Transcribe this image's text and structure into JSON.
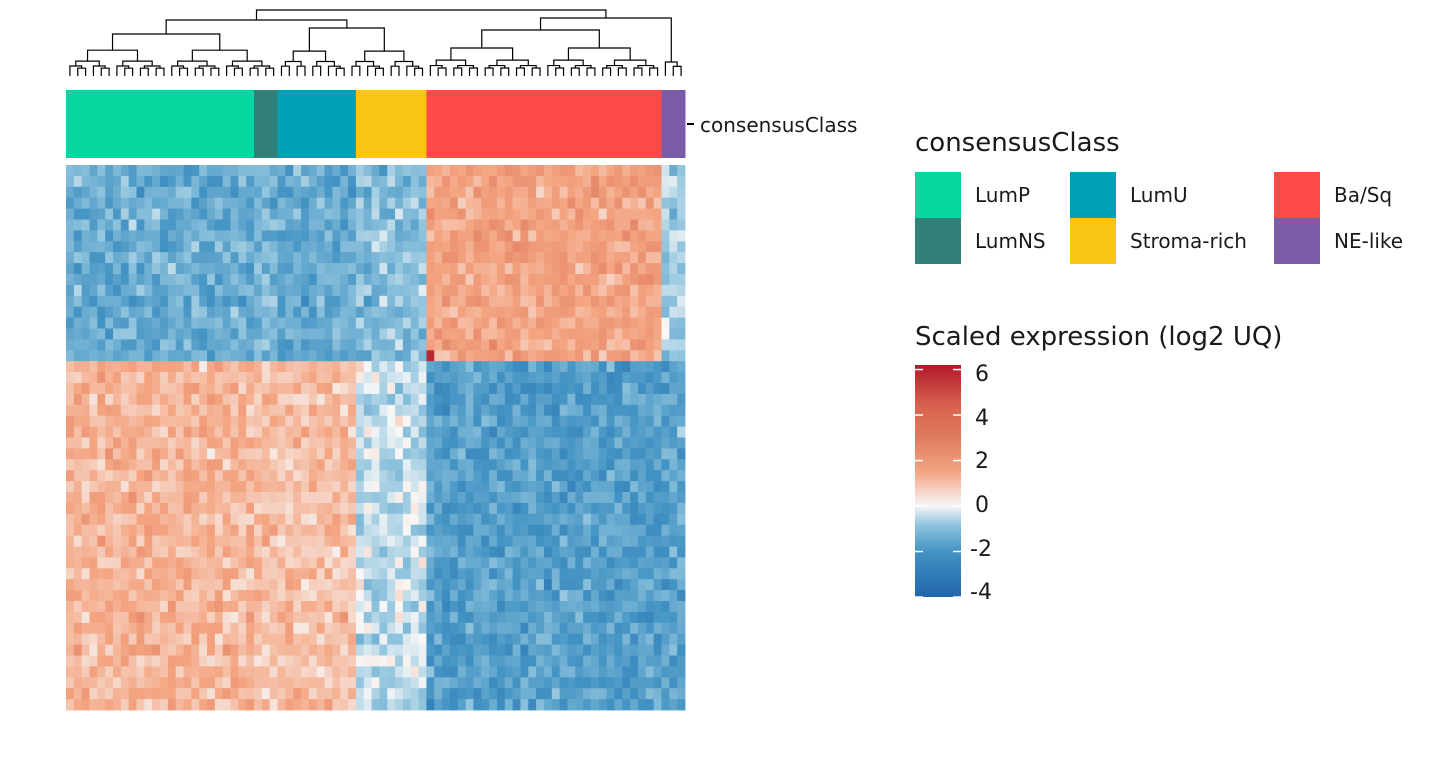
{
  "chart_data": {
    "type": "heatmap",
    "title": "",
    "annotation_track_label": "consensusClass",
    "class_legend": {
      "title": "consensusClass",
      "entries": [
        {
          "label": "LumP",
          "color": "#06D6A0"
        },
        {
          "label": "LumU",
          "color": "#00A0B8"
        },
        {
          "label": "Ba/Sq",
          "color": "#FF4A4A"
        },
        {
          "label": "LumNS",
          "color": "#338079"
        },
        {
          "label": "Stroma-rich",
          "color": "#F9C512"
        },
        {
          "label": "NE-like",
          "color": "#7C5CA8"
        }
      ]
    },
    "column_annotation": [
      {
        "class": "LumP",
        "n_samples": 24
      },
      {
        "class": "LumNS",
        "n_samples": 3
      },
      {
        "class": "LumU",
        "n_samples": 10
      },
      {
        "class": "Stroma-rich",
        "n_samples": 9
      },
      {
        "class": "Ba/Sq",
        "n_samples": 30
      },
      {
        "class": "NE-like",
        "n_samples": 3
      }
    ],
    "n_genes": 50,
    "gene_blocks": [
      {
        "name": "upper",
        "n_genes": 18,
        "mean_by_class": {
          "LumP": -1.4,
          "LumNS": -1.2,
          "LumU": -1.5,
          "Stroma-rich": -1.0,
          "Ba/Sq": 1.6,
          "NE-like": -0.6
        }
      },
      {
        "name": "lower",
        "n_genes": 32,
        "mean_by_class": {
          "LumP": 1.2,
          "LumNS": 1.0,
          "LumU": 1.0,
          "Stroma-rich": -0.4,
          "Ba/Sq": -1.7,
          "NE-like": -1.6
        }
      }
    ],
    "color_scale": {
      "title": "Scaled expression (log2 UQ)",
      "min": -4,
      "max": 6.2,
      "ticks": [
        "6",
        "4",
        "2",
        "0",
        "-2",
        "-4"
      ],
      "stops": [
        {
          "value": -4,
          "color": "#2166AC"
        },
        {
          "value": -2,
          "color": "#4393C3"
        },
        {
          "value": -0.8,
          "color": "#92C5DE"
        },
        {
          "value": 0,
          "color": "#F7F7F7"
        },
        {
          "value": 1.5,
          "color": "#F4A582"
        },
        {
          "value": 3,
          "color": "#E07B5F"
        },
        {
          "value": 4.5,
          "color": "#D6604D"
        },
        {
          "value": 6.2,
          "color": "#B2182B"
        }
      ]
    },
    "dendrogram": "columns",
    "grid": false
  }
}
